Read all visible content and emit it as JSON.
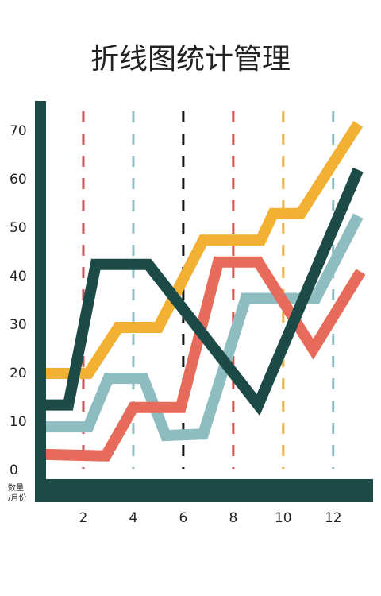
{
  "chart_data": {
    "type": "line",
    "title": "折线图统计管理",
    "ylabel": "数量",
    "xlabel": "/月份",
    "xlim": [
      0,
      13.5
    ],
    "ylim": [
      0,
      70
    ],
    "xticks": [
      2,
      4,
      6,
      8,
      10,
      12
    ],
    "yticks": [
      0,
      10,
      20,
      30,
      40,
      50,
      60,
      70
    ],
    "xtick_line_colors": [
      "#e0474c",
      "#8dbcc1",
      "#111111",
      "#e0474c",
      "#f3b134",
      "#8dbcc1"
    ],
    "axis_color": "#1c4a47",
    "series": [
      {
        "color": "#8dbcc1",
        "x": [
          0.5,
          2.2,
          3,
          4.4,
          5.3,
          6.8,
          8.5,
          11.3,
          13
        ],
        "values": [
          9,
          9,
          19,
          19,
          7.2,
          7.5,
          35.5,
          35.5,
          52.5
        ]
      },
      {
        "color": "#e66b5b",
        "x": [
          0.5,
          2.9,
          4,
          5.9,
          7.4,
          9,
          11.2,
          13.1
        ],
        "values": [
          3.3,
          3,
          13,
          13,
          43,
          43,
          25,
          41
        ]
      },
      {
        "color": "#f3b134",
        "x": [
          0.5,
          2.2,
          3.4,
          5,
          6.8,
          9.1,
          9.6,
          10.7,
          13
        ],
        "values": [
          20,
          20,
          29.5,
          29.5,
          47.5,
          47.5,
          53,
          53,
          71.5
        ]
      },
      {
        "color": "#1c4a47",
        "x": [
          0.5,
          1.4,
          2.5,
          4.6,
          9,
          13
        ],
        "values": [
          13.5,
          13.5,
          42.5,
          42.5,
          13.5,
          62
        ]
      }
    ]
  }
}
